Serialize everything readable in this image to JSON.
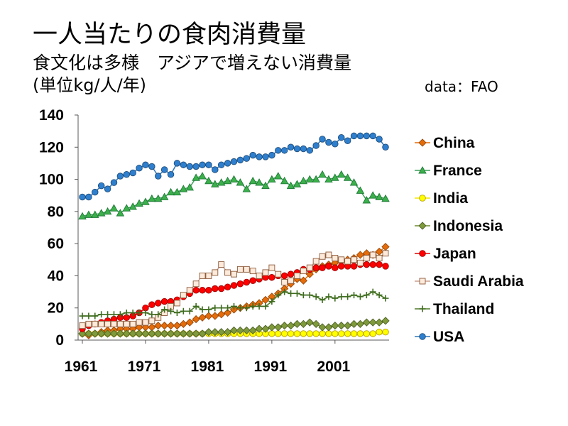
{
  "chart_data": {
    "type": "line",
    "title": "一人当たりの食肉消費量",
    "subtitle": "食文化は多様　アジアで増えない消費量",
    "ylabel": "(単位kg/人/年)",
    "source": "data：FAO",
    "x": [
      1961,
      1962,
      1963,
      1964,
      1965,
      1966,
      1967,
      1968,
      1969,
      1970,
      1971,
      1972,
      1973,
      1974,
      1975,
      1976,
      1977,
      1978,
      1979,
      1980,
      1981,
      1982,
      1983,
      1984,
      1985,
      1986,
      1987,
      1988,
      1989,
      1990,
      1991,
      1992,
      1993,
      1994,
      1995,
      1996,
      1997,
      1998,
      1999,
      2000,
      2001,
      2002,
      2003,
      2004,
      2005,
      2006,
      2007,
      2008,
      2009
    ],
    "xtick_labels": [
      "1961",
      "1971",
      "1981",
      "1991",
      "2001"
    ],
    "ylim": [
      0,
      140
    ],
    "yticks": [
      0,
      20,
      40,
      60,
      80,
      100,
      120,
      140
    ],
    "grid": false,
    "legend": "right",
    "series": [
      {
        "name": "China",
        "marker": "diamond",
        "line_color": "#E46C0A",
        "marker_fill": "#E46C0A",
        "marker_stroke": "#984807",
        "values": [
          4,
          3,
          4,
          5,
          6,
          6,
          7,
          7,
          7,
          8,
          8,
          8,
          9,
          9,
          9,
          9,
          10,
          11,
          13,
          14,
          15,
          15,
          16,
          17,
          19,
          20,
          21,
          22,
          23,
          25,
          27,
          29,
          32,
          35,
          38,
          37,
          41,
          44,
          46,
          47,
          48,
          49,
          50,
          51,
          53,
          54,
          53,
          55,
          58
        ]
      },
      {
        "name": "France",
        "marker": "triangle",
        "line_color": "#3E9E5A",
        "marker_fill": "#3CB04A",
        "marker_stroke": "#1E7A38",
        "values": [
          77,
          78,
          78,
          79,
          80,
          82,
          79,
          82,
          83,
          85,
          86,
          88,
          88,
          89,
          92,
          92,
          94,
          95,
          101,
          102,
          99,
          97,
          98,
          99,
          100,
          98,
          94,
          99,
          98,
          96,
          100,
          102,
          99,
          96,
          97,
          99,
          100,
          100,
          103,
          100,
          101,
          103,
          101,
          98,
          93,
          87,
          90,
          89,
          88
        ]
      },
      {
        "name": "India",
        "marker": "circle",
        "line_color": "#F2E600",
        "marker_fill": "#FFFF00",
        "marker_stroke": "#B8A000",
        "values": [
          4,
          4,
          4,
          4,
          4,
          4,
          4,
          4,
          4,
          4,
          4,
          4,
          4,
          4,
          4,
          4,
          4,
          4,
          4,
          4,
          4,
          4,
          4,
          4,
          4,
          4,
          4,
          4,
          4,
          4,
          4,
          4,
          4,
          4,
          4,
          4,
          4,
          4,
          4,
          4,
          4,
          4,
          4,
          4,
          4,
          4,
          4,
          5,
          5
        ]
      },
      {
        "name": "Indonesia",
        "marker": "diamond",
        "line_color": "#6F8A30",
        "marker_fill": "#7F9A3A",
        "marker_stroke": "#4F6228",
        "values": [
          4,
          4,
          4,
          4,
          4,
          4,
          4,
          4,
          4,
          4,
          4,
          4,
          4,
          4,
          4,
          4,
          4,
          4,
          4,
          4,
          5,
          5,
          5,
          5,
          6,
          6,
          6,
          6,
          7,
          7,
          8,
          8,
          9,
          9,
          10,
          10,
          11,
          10,
          8,
          8,
          9,
          9,
          9,
          10,
          10,
          11,
          11,
          11,
          12
        ]
      },
      {
        "name": "Japan",
        "marker": "circle",
        "line_color": "#E00000",
        "marker_fill": "#FF0000",
        "marker_stroke": "#A00000",
        "values": [
          7,
          9,
          10,
          11,
          12,
          13,
          14,
          14,
          15,
          17,
          20,
          22,
          23,
          24,
          24,
          25,
          27,
          29,
          31,
          31,
          31,
          32,
          32,
          33,
          34,
          35,
          36,
          37,
          38,
          39,
          39,
          40,
          40,
          41,
          42,
          44,
          44,
          45,
          45,
          46,
          45,
          46,
          46,
          46,
          47,
          47,
          47,
          47,
          46
        ]
      },
      {
        "name": "Saudi Arabia",
        "marker": "square",
        "line_color": "#C8A08C",
        "marker_fill": "#FDEADA",
        "marker_stroke": "#8C5A3C",
        "values": [
          9,
          10,
          10,
          10,
          10,
          10,
          10,
          10,
          10,
          11,
          11,
          12,
          14,
          17,
          21,
          23,
          28,
          31,
          35,
          40,
          40,
          42,
          47,
          42,
          41,
          44,
          44,
          43,
          40,
          42,
          45,
          41,
          36,
          37,
          40,
          43,
          45,
          49,
          52,
          53,
          51,
          50,
          49,
          50,
          48,
          51,
          53,
          51,
          54
        ]
      },
      {
        "name": "Thailand",
        "marker": "plus",
        "line_color": "#4E7A28",
        "marker_fill": "none",
        "marker_stroke": "#3D6B1E",
        "values": [
          15,
          15,
          15,
          16,
          16,
          16,
          16,
          17,
          17,
          17,
          17,
          16,
          16,
          19,
          18,
          17,
          18,
          18,
          21,
          19,
          19,
          20,
          20,
          20,
          21,
          20,
          20,
          21,
          21,
          21,
          24,
          28,
          30,
          29,
          29,
          28,
          28,
          27,
          25,
          27,
          26,
          27,
          27,
          28,
          27,
          28,
          30,
          28,
          26
        ]
      },
      {
        "name": "USA",
        "marker": "circle",
        "line_color": "#2E75B6",
        "marker_fill": "#2F7FCF",
        "marker_stroke": "#1F4E79",
        "values": [
          89,
          89,
          92,
          96,
          94,
          98,
          102,
          103,
          104,
          107,
          109,
          108,
          102,
          106,
          103,
          110,
          109,
          108,
          108,
          109,
          109,
          106,
          109,
          110,
          111,
          112,
          113,
          115,
          114,
          114,
          115,
          118,
          118,
          120,
          119,
          119,
          118,
          121,
          125,
          123,
          122,
          126,
          124,
          127,
          127,
          127,
          127,
          125,
          120
        ]
      }
    ]
  }
}
